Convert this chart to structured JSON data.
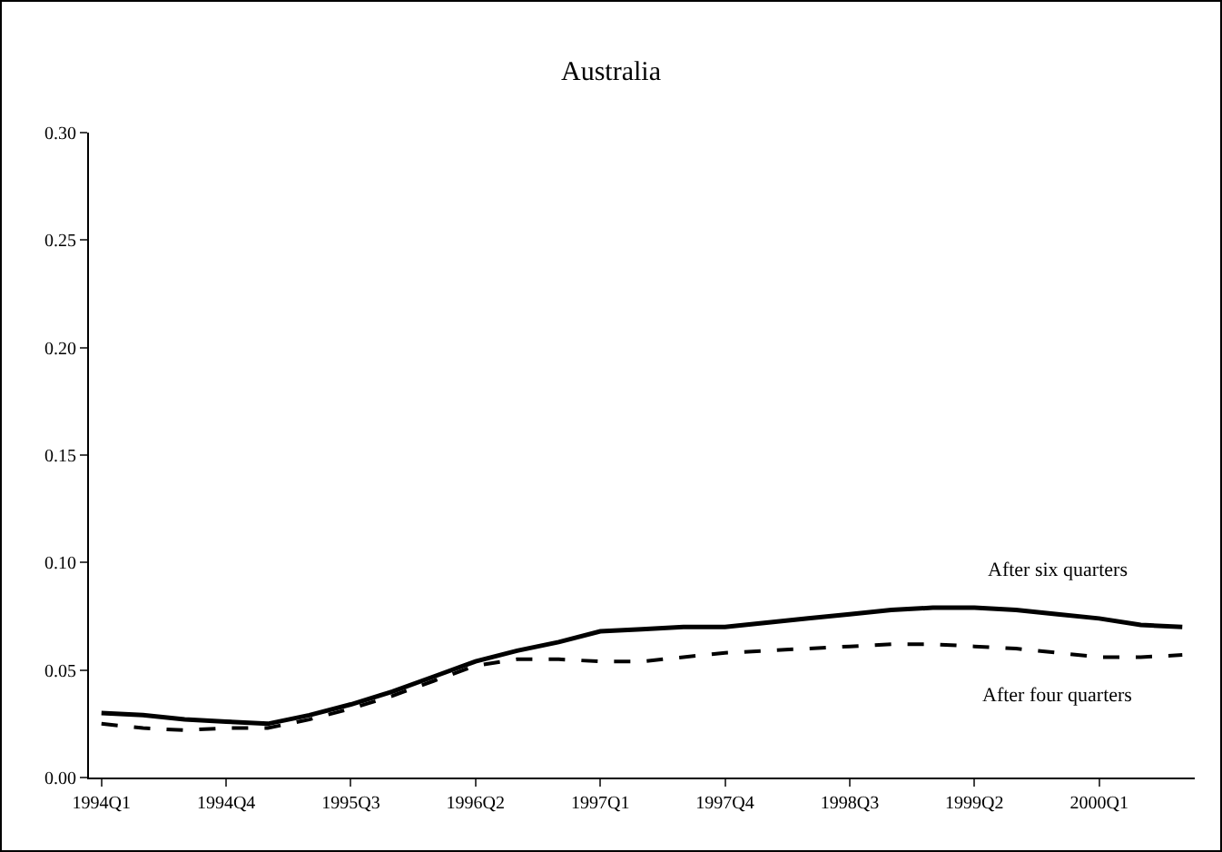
{
  "chart_data": {
    "type": "line",
    "title": "Australia",
    "categories": [
      "1994Q1",
      null,
      null,
      "1994Q4",
      null,
      null,
      "1995Q3",
      null,
      null,
      "1996Q2",
      null,
      null,
      "1997Q1",
      null,
      null,
      "1997Q4",
      null,
      null,
      "1998Q3",
      null,
      null,
      "1999Q2",
      null,
      null,
      "2000Q1",
      null,
      null
    ],
    "series": [
      {
        "name": "After six quarters",
        "color": "#000000",
        "line_style": "solid",
        "values": [
          0.03,
          0.029,
          0.027,
          0.026,
          0.025,
          0.029,
          0.034,
          0.04,
          0.047,
          0.054,
          0.059,
          0.063,
          0.068,
          0.069,
          0.07,
          0.07,
          0.072,
          0.074,
          0.076,
          0.078,
          0.079,
          0.079,
          0.078,
          0.076,
          0.074,
          0.071,
          0.07
        ]
      },
      {
        "name": "After four quarters",
        "color": "#000000",
        "line_style": "dashed",
        "values": [
          0.025,
          0.023,
          0.022,
          0.023,
          0.023,
          0.027,
          0.032,
          0.038,
          0.045,
          0.052,
          0.055,
          0.055,
          0.054,
          0.054,
          0.056,
          0.058,
          0.059,
          0.06,
          0.061,
          0.062,
          0.062,
          0.061,
          0.06,
          0.058,
          0.056,
          0.056,
          0.057
        ]
      }
    ],
    "ylim": [
      0,
      0.3
    ],
    "yticks": [
      {
        "value": 0,
        "label": "0.00"
      },
      {
        "value": 0.05,
        "label": "0.05"
      },
      {
        "value": 0.1,
        "label": "0.10"
      },
      {
        "value": 0.15,
        "label": "0.15"
      },
      {
        "value": 0.2,
        "label": "0.20"
      },
      {
        "value": 0.25,
        "label": "0.25"
      },
      {
        "value": 0.3,
        "label": "0.30"
      }
    ],
    "grid": false,
    "legend": false
  }
}
